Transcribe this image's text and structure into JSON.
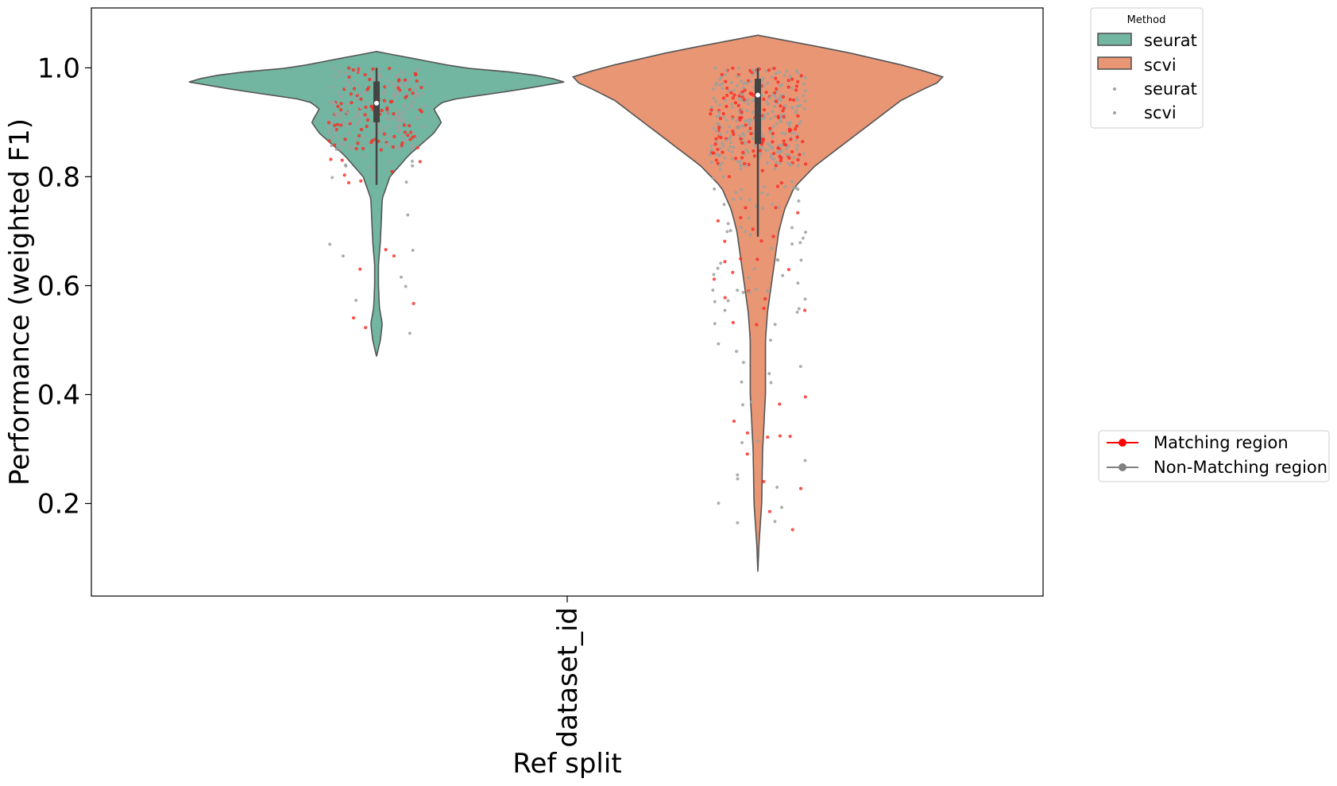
{
  "chart_data": {
    "type": "violin",
    "title": "",
    "xlabel": "Ref split",
    "ylabel": "Performance (weighted F1)",
    "categories": [
      "dataset_id"
    ],
    "ylim": [
      0.03,
      1.11
    ],
    "yticks": [
      0.2,
      0.4,
      0.6,
      0.8,
      1.0
    ],
    "ytick_labels": [
      "0.2",
      "0.4",
      "0.6",
      "0.8",
      "1.0"
    ],
    "grid": false,
    "legend_method": {
      "title": "Method",
      "position": "outside-top-right",
      "entries": [
        {
          "kind": "patch",
          "label": "seurat",
          "color": "#72b6a1"
        },
        {
          "kind": "patch",
          "label": "scvi",
          "color": "#e99675"
        },
        {
          "kind": "marker",
          "label": "seurat",
          "color": "#a0a0a0"
        },
        {
          "kind": "marker",
          "label": "scvi",
          "color": "#a0a0a0"
        }
      ]
    },
    "legend_region": {
      "position": "outside-middle-right",
      "entries": [
        {
          "label": "Matching region",
          "color": "#ff0000"
        },
        {
          "label": "Non-Matching region",
          "color": "#808080"
        }
      ]
    },
    "series": [
      {
        "name": "seurat",
        "color": "#72b6a1",
        "y_min": 0.47,
        "y_max": 1.03,
        "box": {
          "q1": 0.9,
          "median": 0.935,
          "q3": 0.975,
          "whisker_low": 0.785,
          "whisker_high": 1.0
        },
        "density_profile": [
          [
            0.47,
            0.0
          ],
          [
            0.5,
            0.02
          ],
          [
            0.53,
            0.03
          ],
          [
            0.56,
            0.015
          ],
          [
            0.6,
            0.01
          ],
          [
            0.64,
            0.01
          ],
          [
            0.68,
            0.02
          ],
          [
            0.72,
            0.025
          ],
          [
            0.76,
            0.03
          ],
          [
            0.8,
            0.07
          ],
          [
            0.84,
            0.17
          ],
          [
            0.88,
            0.3
          ],
          [
            0.9,
            0.34
          ],
          [
            0.925,
            0.3
          ],
          [
            0.94,
            0.36
          ],
          [
            0.96,
            0.75
          ],
          [
            0.975,
            1.0
          ],
          [
            0.99,
            0.78
          ],
          [
            1.0,
            0.45
          ],
          [
            1.02,
            0.15
          ],
          [
            1.03,
            0.0
          ]
        ]
      },
      {
        "name": "scvi",
        "color": "#e99675",
        "y_min": 0.075,
        "y_max": 1.06,
        "box": {
          "q1": 0.86,
          "median": 0.95,
          "q3": 0.98,
          "whisker_low": 0.69,
          "whisker_high": 1.0
        },
        "density_profile": [
          [
            0.075,
            0.0
          ],
          [
            0.12,
            0.005
          ],
          [
            0.2,
            0.02
          ],
          [
            0.3,
            0.025
          ],
          [
            0.4,
            0.04
          ],
          [
            0.5,
            0.04
          ],
          [
            0.55,
            0.05
          ],
          [
            0.6,
            0.07
          ],
          [
            0.65,
            0.09
          ],
          [
            0.7,
            0.11
          ],
          [
            0.74,
            0.14
          ],
          [
            0.78,
            0.19
          ],
          [
            0.82,
            0.3
          ],
          [
            0.86,
            0.45
          ],
          [
            0.9,
            0.6
          ],
          [
            0.94,
            0.75
          ],
          [
            0.97,
            0.92
          ],
          [
            0.98,
            1.0
          ],
          [
            1.0,
            0.82
          ],
          [
            1.03,
            0.45
          ],
          [
            1.06,
            0.0
          ]
        ]
      }
    ]
  }
}
